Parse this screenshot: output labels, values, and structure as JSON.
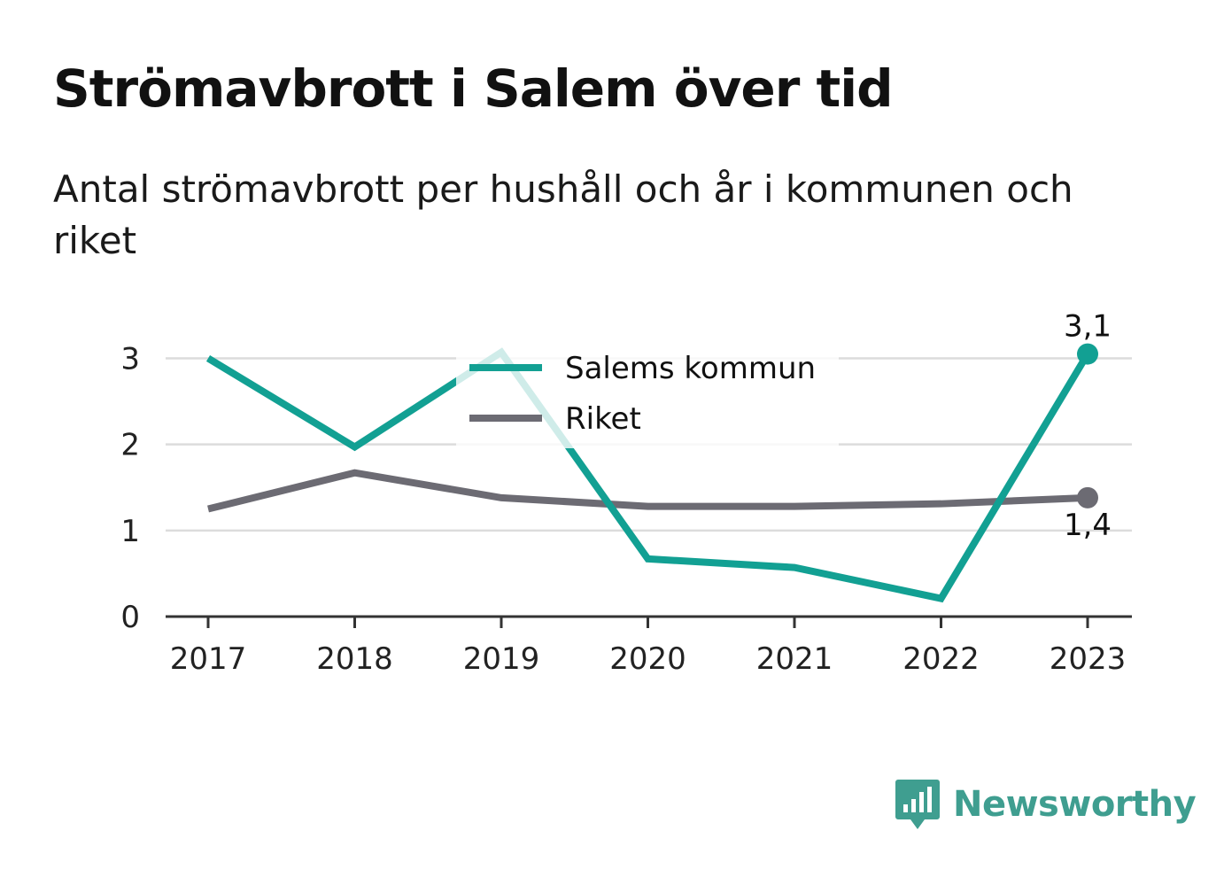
{
  "title": "Strömavbrott i Salem över tid",
  "subtitle": "Antal strömavbrott per hushåll och år i kommunen och riket",
  "brand": {
    "name": "Newsworthy",
    "icon": "bar-chart-speech-bubble-icon"
  },
  "chart_data": {
    "type": "line",
    "x": [
      "2017",
      "2018",
      "2019",
      "2020",
      "2021",
      "2022",
      "2023"
    ],
    "ylim": [
      0,
      3.2
    ],
    "yticks": [
      0,
      1,
      2,
      3
    ],
    "grid": true,
    "legend_position": "top-center",
    "series": [
      {
        "name": "Salems kommun",
        "color": "#12a093",
        "values": [
          3.0,
          1.97,
          3.07,
          0.67,
          0.57,
          0.21,
          3.05
        ],
        "end_label": "3,1"
      },
      {
        "name": "Riket",
        "color": "#6c6b73",
        "values": [
          1.25,
          1.67,
          1.38,
          1.28,
          1.28,
          1.31,
          1.38
        ],
        "end_label": "1,4"
      }
    ]
  }
}
